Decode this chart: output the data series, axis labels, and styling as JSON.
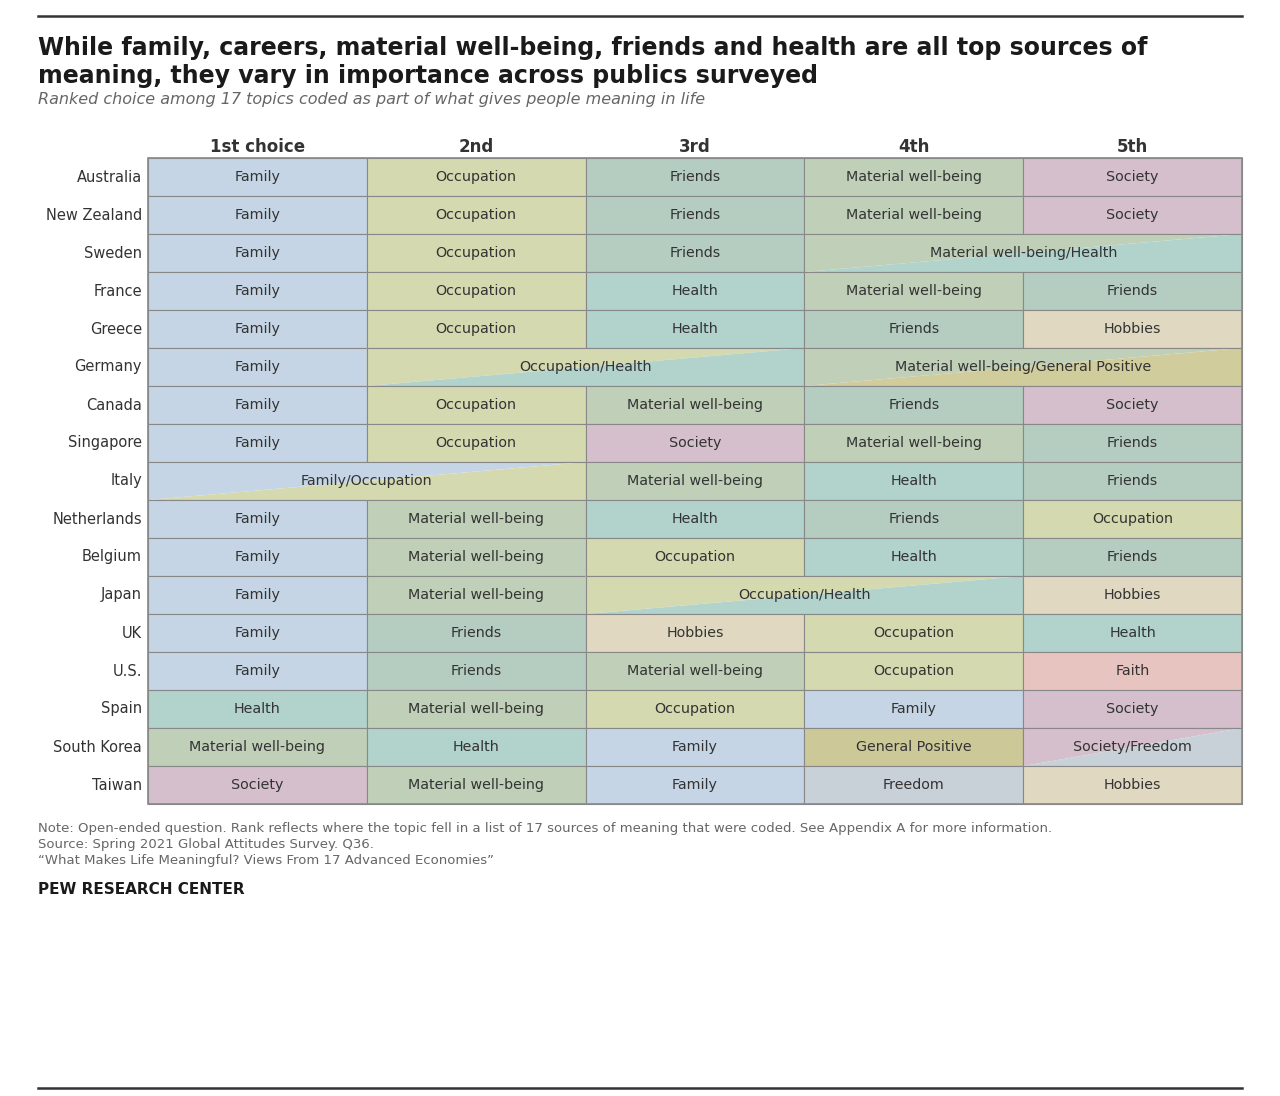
{
  "title_line1": "While family, careers, material well-being, friends and health are all top sources of",
  "title_line2": "meaning, they vary in importance across publics surveyed",
  "subtitle": "Ranked choice among 17 topics coded as part of what gives people meaning in life",
  "col_headers": [
    "1st choice",
    "2nd",
    "3rd",
    "4th",
    "5th"
  ],
  "countries": [
    "Australia",
    "New Zealand",
    "Sweden",
    "France",
    "Greece",
    "Germany",
    "Canada",
    "Singapore",
    "Italy",
    "Netherlands",
    "Belgium",
    "Japan",
    "UK",
    "U.S.",
    "Spain",
    "South Korea",
    "Taiwan"
  ],
  "table_data": [
    [
      {
        "text": "Family",
        "color": "#c5d5e5",
        "span": 1
      },
      {
        "text": "Occupation",
        "color": "#d4d9b0",
        "span": 1
      },
      {
        "text": "Friends",
        "color": "#b5ccc0",
        "span": 1
      },
      {
        "text": "Material well-being",
        "color": "#c0d0b8",
        "span": 1
      },
      {
        "text": "Society",
        "color": "#d5bfcc",
        "span": 1
      }
    ],
    [
      {
        "text": "Family",
        "color": "#c5d5e5",
        "span": 1
      },
      {
        "text": "Occupation",
        "color": "#d4d9b0",
        "span": 1
      },
      {
        "text": "Friends",
        "color": "#b5ccc0",
        "span": 1
      },
      {
        "text": "Material well-being",
        "color": "#c0d0b8",
        "span": 1
      },
      {
        "text": "Society",
        "color": "#d5bfcc",
        "span": 1
      }
    ],
    [
      {
        "text": "Family",
        "color": "#c5d5e5",
        "span": 1
      },
      {
        "text": "Occupation",
        "color": "#d4d9b0",
        "span": 1
      },
      {
        "text": "Friends",
        "color": "#b5ccc0",
        "span": 1
      },
      {
        "text": "Material well-being/Health",
        "color1": "#c0d0b8",
        "color2": "#b2d2cc",
        "span": 2,
        "merged": true
      }
    ],
    [
      {
        "text": "Family",
        "color": "#c5d5e5",
        "span": 1
      },
      {
        "text": "Occupation",
        "color": "#d4d9b0",
        "span": 1
      },
      {
        "text": "Health",
        "color": "#b2d2cc",
        "span": 1
      },
      {
        "text": "Material well-being",
        "color": "#c0d0b8",
        "span": 1
      },
      {
        "text": "Friends",
        "color": "#b5ccc0",
        "span": 1
      }
    ],
    [
      {
        "text": "Family",
        "color": "#c5d5e5",
        "span": 1
      },
      {
        "text": "Occupation",
        "color": "#d4d9b0",
        "span": 1
      },
      {
        "text": "Health",
        "color": "#b2d2cc",
        "span": 1
      },
      {
        "text": "Friends",
        "color": "#b5ccc0",
        "span": 1
      },
      {
        "text": "Hobbies",
        "color": "#e0d8c0",
        "span": 1
      }
    ],
    [
      {
        "text": "Family",
        "color": "#c5d5e5",
        "span": 1
      },
      {
        "text": "Occupation/Health",
        "color1": "#d4d9b0",
        "color2": "#b2d2cc",
        "span": 2,
        "merged": true
      },
      {
        "text": "Material well-being/General Positive",
        "color1": "#c0d0b8",
        "color2": "#d0cc9c",
        "span": 2,
        "merged": true
      }
    ],
    [
      {
        "text": "Family",
        "color": "#c5d5e5",
        "span": 1
      },
      {
        "text": "Occupation",
        "color": "#d4d9b0",
        "span": 1
      },
      {
        "text": "Material well-being",
        "color": "#c0d0b8",
        "span": 1
      },
      {
        "text": "Friends",
        "color": "#b5ccc0",
        "span": 1
      },
      {
        "text": "Society",
        "color": "#d5bfcc",
        "span": 1
      }
    ],
    [
      {
        "text": "Family",
        "color": "#c5d5e5",
        "span": 1
      },
      {
        "text": "Occupation",
        "color": "#d4d9b0",
        "span": 1
      },
      {
        "text": "Society",
        "color": "#d5bfcc",
        "span": 1
      },
      {
        "text": "Material well-being",
        "color": "#c0d0b8",
        "span": 1
      },
      {
        "text": "Friends",
        "color": "#b5ccc0",
        "span": 1
      }
    ],
    [
      {
        "text": "Family/Occupation",
        "color1": "#c5d5e5",
        "color2": "#d4d9b0",
        "span": 2,
        "merged": true
      },
      {
        "text": "Material well-being",
        "color": "#c0d0b8",
        "span": 1
      },
      {
        "text": "Health",
        "color": "#b2d2cc",
        "span": 1
      },
      {
        "text": "Friends",
        "color": "#b5ccc0",
        "span": 1
      }
    ],
    [
      {
        "text": "Family",
        "color": "#c5d5e5",
        "span": 1
      },
      {
        "text": "Material well-being",
        "color": "#c0d0b8",
        "span": 1
      },
      {
        "text": "Health",
        "color": "#b2d2cc",
        "span": 1
      },
      {
        "text": "Friends",
        "color": "#b5ccc0",
        "span": 1
      },
      {
        "text": "Occupation",
        "color": "#d4d9b0",
        "span": 1
      }
    ],
    [
      {
        "text": "Family",
        "color": "#c5d5e5",
        "span": 1
      },
      {
        "text": "Material well-being",
        "color": "#c0d0b8",
        "span": 1
      },
      {
        "text": "Occupation",
        "color": "#d4d9b0",
        "span": 1
      },
      {
        "text": "Health",
        "color": "#b2d2cc",
        "span": 1
      },
      {
        "text": "Friends",
        "color": "#b5ccc0",
        "span": 1
      }
    ],
    [
      {
        "text": "Family",
        "color": "#c5d5e5",
        "span": 1
      },
      {
        "text": "Material well-being",
        "color": "#c0d0b8",
        "span": 1
      },
      {
        "text": "Occupation/Health",
        "color1": "#d4d9b0",
        "color2": "#b2d2cc",
        "span": 2,
        "merged": true
      },
      {
        "text": "Hobbies",
        "color": "#e0d8c0",
        "span": 1
      }
    ],
    [
      {
        "text": "Family",
        "color": "#c5d5e5",
        "span": 1
      },
      {
        "text": "Friends",
        "color": "#b5ccc0",
        "span": 1
      },
      {
        "text": "Hobbies",
        "color": "#e0d8c0",
        "span": 1
      },
      {
        "text": "Occupation",
        "color": "#d4d9b0",
        "span": 1
      },
      {
        "text": "Health",
        "color": "#b2d2cc",
        "span": 1
      }
    ],
    [
      {
        "text": "Family",
        "color": "#c5d5e5",
        "span": 1
      },
      {
        "text": "Friends",
        "color": "#b5ccc0",
        "span": 1
      },
      {
        "text": "Material well-being",
        "color": "#c0d0b8",
        "span": 1
      },
      {
        "text": "Occupation",
        "color": "#d4d9b0",
        "span": 1
      },
      {
        "text": "Faith",
        "color": "#e8c4c0",
        "span": 1
      }
    ],
    [
      {
        "text": "Health",
        "color": "#b2d2cc",
        "span": 1
      },
      {
        "text": "Material well-being",
        "color": "#c0d0b8",
        "span": 1
      },
      {
        "text": "Occupation",
        "color": "#d4d9b0",
        "span": 1
      },
      {
        "text": "Family",
        "color": "#c5d5e5",
        "span": 1
      },
      {
        "text": "Society",
        "color": "#d5bfcc",
        "span": 1
      }
    ],
    [
      {
        "text": "Material well-being",
        "color": "#c0d0b8",
        "span": 1
      },
      {
        "text": "Health",
        "color": "#b2d2cc",
        "span": 1
      },
      {
        "text": "Family",
        "color": "#c5d5e5",
        "span": 1
      },
      {
        "text": "General Positive",
        "color": "#ccc898",
        "span": 1
      },
      {
        "text": "Society/Freedom",
        "color1": "#d5bfcc",
        "color2": "#c8d0d8",
        "span": 1,
        "merged": false
      }
    ],
    [
      {
        "text": "Society",
        "color": "#d5bfcc",
        "span": 1
      },
      {
        "text": "Material well-being",
        "color": "#c0d0b8",
        "span": 1
      },
      {
        "text": "Family",
        "color": "#c5d5e5",
        "span": 1
      },
      {
        "text": "Freedom",
        "color": "#c8d0d8",
        "span": 1
      },
      {
        "text": "Hobbies",
        "color": "#e0d8c0",
        "span": 1
      }
    ]
  ],
  "note_text": "Note: Open-ended question. Rank reflects where the topic fell in a list of 17 sources of meaning that were coded. See Appendix A for more information.\nSource: Spring 2021 Global Attitudes Survey. Q36.\n“What Makes Life Meaningful? Views From 17 Advanced Economies”",
  "source_label": "PEW RESEARCH CENTER",
  "bg_color": "#ffffff",
  "title_color": "#1a1a1a",
  "subtitle_color": "#666666",
  "text_color": "#333333",
  "note_color": "#666666",
  "border_color": "#888888"
}
